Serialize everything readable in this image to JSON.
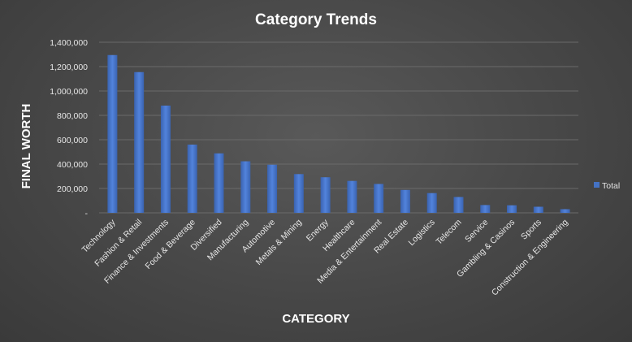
{
  "chart_data": {
    "type": "bar",
    "title": "Category Trends",
    "xlabel": "CATEGORY",
    "ylabel": "FINAL WORTH",
    "categories": [
      "Technology",
      "Fashion & Retail",
      "Finance & Investments",
      "Food & Beverage",
      "Diversified",
      "Manufacturing",
      "Automotive",
      "Metals & Mining",
      "Energy",
      "Healthcare",
      "Media & Entertainment",
      "Real Estate",
      "Logistics",
      "Telecom",
      "Service",
      "Gambling & Casinos",
      "Sports",
      "Construction & Engineering"
    ],
    "series": [
      {
        "name": "Total",
        "values": [
          1295000,
          1155000,
          880000,
          560000,
          488000,
          423000,
          395000,
          318000,
          292000,
          262000,
          237000,
          188000,
          162000,
          130000,
          64000,
          62000,
          50000,
          30000
        ]
      }
    ],
    "ylim": [
      0,
      1400000
    ],
    "yticks": [
      0,
      200000,
      400000,
      600000,
      800000,
      1000000,
      1200000,
      1400000
    ],
    "ytick_labels": [
      "-",
      "200,000",
      "400,000",
      "600,000",
      "800,000",
      "1,000,000",
      "1,200,000",
      "1,400,000"
    ],
    "grid": true,
    "legend_position": "right",
    "colors": {
      "bar": "#4472c4",
      "background": "#474747",
      "text": "#ffffff"
    }
  }
}
